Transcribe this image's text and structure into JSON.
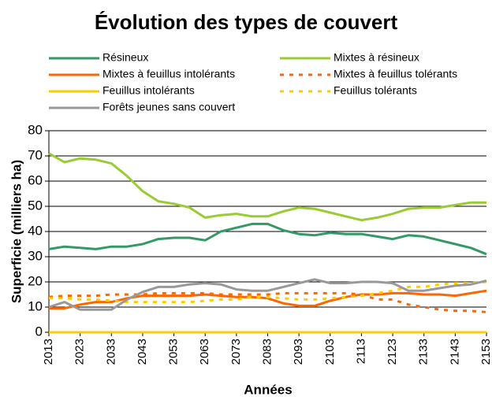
{
  "chart_data": {
    "type": "line",
    "title": "Évolution des types de couvert",
    "x_label": "Années",
    "y_label": "Superficie (milliers ha)",
    "x": [
      2013,
      2018,
      2023,
      2028,
      2033,
      2038,
      2043,
      2048,
      2053,
      2058,
      2063,
      2068,
      2073,
      2078,
      2083,
      2088,
      2093,
      2098,
      2103,
      2108,
      2113,
      2118,
      2123,
      2128,
      2133,
      2138,
      2143,
      2148,
      2153
    ],
    "xlim": [
      2013,
      2153
    ],
    "xticks": [
      2013,
      2023,
      2033,
      2043,
      2053,
      2063,
      2073,
      2083,
      2093,
      2103,
      2113,
      2123,
      2133,
      2143,
      2153
    ],
    "ylim": [
      0,
      80
    ],
    "yticks": [
      0,
      10,
      20,
      30,
      40,
      50,
      60,
      70,
      80
    ],
    "grid": true,
    "series": [
      {
        "name": "Résineux",
        "color": "#339966",
        "dashed": false,
        "values": [
          33,
          34,
          33.5,
          33,
          34,
          34,
          35,
          37,
          37.5,
          37.5,
          36.5,
          40,
          41.5,
          43,
          43,
          40.5,
          39,
          38.5,
          39.5,
          39,
          39,
          38,
          37,
          38.5,
          38,
          36.5,
          35,
          33.5,
          31
        ]
      },
      {
        "name": "Mixtes à résineux",
        "color": "#99cc33",
        "dashed": false,
        "values": [
          71,
          67.5,
          69,
          68.5,
          67,
          62,
          56,
          52,
          51,
          49.5,
          45.5,
          46.5,
          47,
          46,
          46,
          48,
          49.5,
          49,
          47.5,
          46,
          44.5,
          45.5,
          47,
          49,
          49.5,
          49.5,
          50.5,
          51.5,
          51.5
        ]
      },
      {
        "name": "Mixtes à feuillus intolérants",
        "color": "#ff6600",
        "dashed": false,
        "values": [
          9.5,
          9.5,
          11,
          12,
          12,
          13.5,
          14.5,
          14.5,
          14.5,
          14.5,
          15,
          14.5,
          14,
          14,
          13.5,
          11.5,
          10.5,
          10.5,
          12.5,
          14,
          15,
          15,
          15.5,
          15.5,
          15,
          15,
          14.5,
          15.5,
          16.5
        ]
      },
      {
        "name": "Mixtes à feuillus tolérants",
        "color": "#ff6600",
        "dashed": true,
        "values": [
          14,
          14.5,
          14.5,
          14.5,
          15,
          15,
          15,
          15.5,
          15.5,
          15.5,
          15.5,
          15,
          15,
          15,
          15,
          15.5,
          15.5,
          15.5,
          15.5,
          15.5,
          15,
          13,
          13,
          11,
          10,
          9,
          8.5,
          8.5,
          8
        ]
      },
      {
        "name": "Feuillus intolérants",
        "color": "#ffcc00",
        "dashed": false,
        "values": [
          0,
          0,
          0,
          0,
          0,
          0,
          0,
          0,
          0,
          0,
          0,
          0,
          0,
          0,
          0,
          0,
          0,
          0,
          0,
          0,
          0,
          0,
          0,
          0,
          0,
          0,
          0,
          0,
          0
        ]
      },
      {
        "name": "Feuillus tolérants",
        "color": "#ffcc00",
        "dashed": true,
        "values": [
          13.5,
          13.5,
          13,
          13,
          12.5,
          12,
          12,
          12,
          12,
          12,
          12.5,
          13,
          13,
          14,
          14,
          13.5,
          13,
          13,
          13.5,
          14,
          14.5,
          15.5,
          16.5,
          18,
          18,
          19,
          19.5,
          19.5,
          20
        ]
      },
      {
        "name": "Forêts jeunes sans couvert",
        "color": "#999999",
        "dashed": false,
        "values": [
          10,
          12,
          9,
          9,
          9,
          13,
          16,
          18,
          18,
          19,
          19.5,
          19,
          17,
          16.5,
          16.5,
          18,
          19.5,
          21,
          19.5,
          19.5,
          20,
          20,
          19.5,
          16.5,
          16.5,
          17.5,
          18.5,
          19,
          20.5
        ]
      }
    ]
  }
}
